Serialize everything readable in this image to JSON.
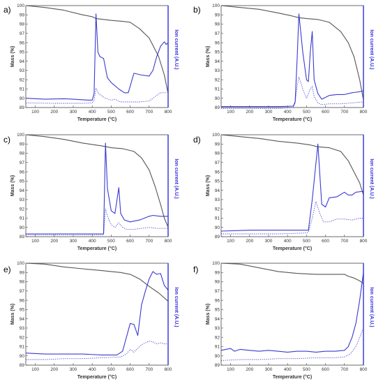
{
  "colors": {
    "mass": "#555555",
    "ion_solid": "#3a3ad0",
    "ion_dotted": "#3a3ad0",
    "ion_axis": "#2f2fd8"
  },
  "chart_data": [
    {
      "type": "line",
      "panel": "a)",
      "xlabel": "Temperature (°C)",
      "ylabel": "Mass (%)",
      "y2label": "Ion current (A.U.)",
      "xlim": [
        50,
        800
      ],
      "ylim": [
        89,
        100
      ],
      "xticks": [
        100,
        200,
        300,
        400,
        500,
        600,
        700,
        800
      ],
      "yticks": [
        89,
        90,
        91,
        92,
        93,
        94,
        95,
        96,
        97,
        98,
        99,
        100
      ],
      "series": [
        {
          "role": "mass",
          "x": [
            50,
            150,
            250,
            350,
            400,
            420,
            500,
            560,
            600,
            650,
            700,
            750,
            780,
            800
          ],
          "values": [
            100,
            99.8,
            99.5,
            99.0,
            98.8,
            98.6,
            98.4,
            98.3,
            98.2,
            97.5,
            96.5,
            94.5,
            92.5,
            90.5
          ]
        },
        {
          "role": "ion_solid",
          "x": [
            50,
            150,
            250,
            300,
            380,
            400,
            410,
            420,
            430,
            440,
            460,
            480,
            500,
            540,
            570,
            590,
            620,
            660,
            700,
            720,
            740,
            760,
            780,
            790,
            800
          ],
          "values": [
            90.0,
            89.9,
            89.95,
            89.9,
            89.8,
            89.8,
            90.5,
            99.1,
            95.0,
            94.5,
            94.3,
            92.2,
            91.7,
            91.0,
            90.6,
            90.6,
            92.7,
            92.5,
            92.4,
            93.0,
            94.5,
            95.6,
            96.1,
            95.8,
            96.0
          ]
        },
        {
          "role": "ion_dotted",
          "x": [
            50,
            200,
            350,
            400,
            410,
            420,
            430,
            440,
            470,
            500,
            520,
            550,
            600,
            650,
            700,
            720,
            740,
            760,
            800
          ],
          "values": [
            89.5,
            89.45,
            89.45,
            89.5,
            89.8,
            91.1,
            90.6,
            90.4,
            90.0,
            89.8,
            89.9,
            89.6,
            89.6,
            89.6,
            89.7,
            90.0,
            90.3,
            90.6,
            90.6
          ]
        }
      ]
    },
    {
      "type": "line",
      "panel": "b)",
      "xlabel": "Temperature (°C)",
      "ylabel": "Mass (%)",
      "y2label": "Ion current (A.U.)",
      "xlim": [
        50,
        800
      ],
      "ylim": [
        89,
        100
      ],
      "xticks": [
        100,
        200,
        300,
        400,
        500,
        600,
        700,
        800
      ],
      "yticks": [
        89,
        90,
        91,
        92,
        93,
        94,
        95,
        96,
        97,
        98,
        99,
        100
      ],
      "series": [
        {
          "role": "mass",
          "x": [
            50,
            150,
            250,
            350,
            420,
            460,
            500,
            560,
            620,
            680,
            720,
            750,
            780,
            800
          ],
          "values": [
            100,
            99.8,
            99.6,
            99.2,
            98.9,
            98.7,
            98.6,
            98.5,
            98.2,
            97.2,
            96.0,
            94.5,
            92.0,
            89.8
          ]
        },
        {
          "role": "ion_solid",
          "x": [
            50,
            200,
            350,
            430,
            440,
            450,
            460,
            480,
            500,
            510,
            520,
            530,
            540,
            560,
            580,
            620,
            660,
            700,
            740,
            780,
            800
          ],
          "values": [
            89.1,
            89.1,
            89.1,
            89.15,
            89.6,
            94.0,
            99.1,
            95.0,
            92.0,
            91.8,
            95.0,
            97.2,
            92.0,
            90.5,
            89.9,
            90.3,
            90.4,
            90.4,
            90.6,
            90.7,
            90.8
          ]
        },
        {
          "role": "ion_dotted",
          "x": [
            50,
            200,
            350,
            430,
            440,
            450,
            460,
            480,
            500,
            520,
            530,
            540,
            560,
            580,
            620,
            680,
            740,
            800
          ],
          "values": [
            88.9,
            88.9,
            88.9,
            89.0,
            89.5,
            91.2,
            92.3,
            91.0,
            90.0,
            91.0,
            91.3,
            90.2,
            89.5,
            89.3,
            89.4,
            89.4,
            89.5,
            89.6
          ]
        }
      ]
    },
    {
      "type": "line",
      "panel": "c)",
      "xlabel": "Temperature (°C)",
      "ylabel": "Mass (%)",
      "y2label": "Ion current (A.U.)",
      "xlim": [
        50,
        800
      ],
      "ylim": [
        89,
        100
      ],
      "xticks": [
        100,
        200,
        300,
        400,
        500,
        600,
        700,
        800
      ],
      "yticks": [
        89,
        90,
        91,
        92,
        93,
        94,
        95,
        96,
        97,
        98,
        99,
        100
      ],
      "series": [
        {
          "role": "mass",
          "x": [
            50,
            150,
            250,
            350,
            450,
            500,
            560,
            620,
            660,
            700,
            730,
            760,
            780,
            800
          ],
          "values": [
            100,
            99.8,
            99.5,
            99.1,
            98.8,
            98.6,
            98.5,
            98.2,
            97.5,
            96.2,
            94.5,
            92.5,
            91.0,
            90.0
          ]
        },
        {
          "role": "ion_solid",
          "x": [
            50,
            200,
            350,
            440,
            460,
            470,
            480,
            500,
            520,
            540,
            550,
            570,
            600,
            650,
            700,
            720,
            760,
            800
          ],
          "values": [
            89.3,
            89.3,
            89.3,
            89.3,
            89.3,
            99.1,
            94.2,
            91.8,
            91.5,
            94.3,
            91.5,
            90.8,
            90.6,
            90.8,
            91.2,
            91.3,
            91.2,
            91.2
          ]
        },
        {
          "role": "ion_dotted",
          "x": [
            50,
            200,
            350,
            440,
            460,
            470,
            480,
            500,
            520,
            540,
            560,
            580,
            620,
            660,
            700,
            740,
            800
          ],
          "values": [
            89.2,
            89.2,
            89.2,
            89.2,
            89.2,
            92.0,
            91.2,
            90.3,
            90.0,
            90.5,
            90.0,
            89.8,
            89.8,
            89.9,
            90.0,
            89.9,
            89.9
          ]
        }
      ]
    },
    {
      "type": "line",
      "panel": "d)",
      "xlabel": "Temperature (°C)",
      "ylabel": "Mass (%)",
      "y2label": "Ion current (A.U.)",
      "xlim": [
        50,
        800
      ],
      "ylim": [
        89,
        100
      ],
      "xticks": [
        100,
        200,
        300,
        400,
        500,
        600,
        700,
        800
      ],
      "yticks": [
        89,
        90,
        91,
        92,
        93,
        94,
        95,
        96,
        97,
        98,
        99,
        100
      ],
      "series": [
        {
          "role": "mass",
          "x": [
            50,
            150,
            250,
            350,
            450,
            520,
            560,
            620,
            680,
            720,
            750,
            780,
            800
          ],
          "values": [
            100,
            99.8,
            99.6,
            99.3,
            99.1,
            98.9,
            98.7,
            98.6,
            98.2,
            97.2,
            96.0,
            94.8,
            93.5
          ]
        },
        {
          "role": "ion_solid",
          "x": [
            50,
            200,
            350,
            500,
            510,
            530,
            550,
            560,
            580,
            600,
            620,
            660,
            700,
            720,
            740,
            760,
            800
          ],
          "values": [
            89.6,
            89.7,
            89.7,
            89.7,
            89.7,
            93.0,
            97.0,
            99.0,
            92.5,
            92.2,
            93.2,
            93.3,
            93.8,
            93.5,
            93.5,
            93.8,
            93.9
          ]
        },
        {
          "role": "ion_dotted",
          "x": [
            50,
            200,
            350,
            500,
            510,
            530,
            550,
            570,
            590,
            620,
            660,
            700,
            740,
            780,
            800
          ],
          "values": [
            89.3,
            89.3,
            89.3,
            89.4,
            89.5,
            91.0,
            92.8,
            91.5,
            90.6,
            90.6,
            90.9,
            90.9,
            90.8,
            91.0,
            91.0
          ]
        }
      ]
    },
    {
      "type": "line",
      "panel": "e)",
      "xlabel": "Temperature (°C)",
      "ylabel": "Mass (%)",
      "y2label": "Ion current (A.U.)",
      "xlim": [
        50,
        800
      ],
      "ylim": [
        89,
        100
      ],
      "xticks": [
        100,
        200,
        300,
        400,
        500,
        600,
        700,
        800
      ],
      "yticks": [
        89,
        90,
        91,
        92,
        93,
        94,
        95,
        96,
        97,
        98,
        99,
        100
      ],
      "series": [
        {
          "role": "mass",
          "x": [
            50,
            150,
            250,
            350,
            450,
            550,
            600,
            650,
            700,
            750,
            800
          ],
          "values": [
            100,
            99.9,
            99.6,
            99.4,
            99.2,
            99.0,
            98.8,
            98.3,
            97.5,
            96.8,
            95.9
          ]
        },
        {
          "role": "ion_solid",
          "x": [
            50,
            150,
            250,
            350,
            450,
            530,
            560,
            580,
            600,
            620,
            640,
            660,
            680,
            700,
            720,
            740,
            760,
            780,
            800
          ],
          "values": [
            90.3,
            90.2,
            90.2,
            90.2,
            90.1,
            90.1,
            90.5,
            92.0,
            93.5,
            93.4,
            92.2,
            95.5,
            97.0,
            98.3,
            99.1,
            98.8,
            98.9,
            97.6,
            97.1
          ]
        },
        {
          "role": "ion_dotted",
          "x": [
            50,
            150,
            250,
            350,
            450,
            550,
            580,
            600,
            620,
            640,
            660,
            680,
            700,
            720,
            740,
            760,
            780,
            800
          ],
          "values": [
            89.6,
            89.6,
            89.7,
            89.7,
            89.8,
            89.9,
            90.2,
            90.7,
            90.4,
            90.8,
            91.2,
            91.4,
            91.6,
            91.5,
            91.3,
            91.4,
            91.3,
            91.3
          ]
        }
      ]
    },
    {
      "type": "line",
      "panel": "f)",
      "xlabel": "Temperature (°C)",
      "ylabel": "Mass (%)",
      "y2label": "Ion current (A.U.)",
      "xlim": [
        50,
        800
      ],
      "ylim": [
        89,
        100
      ],
      "xticks": [
        100,
        200,
        300,
        400,
        500,
        600,
        700,
        800
      ],
      "yticks": [
        89,
        90,
        91,
        92,
        93,
        94,
        95,
        96,
        97,
        98,
        99,
        100
      ],
      "series": [
        {
          "role": "mass",
          "x": [
            50,
            150,
            250,
            350,
            450,
            550,
            650,
            700,
            720,
            750,
            780,
            800
          ],
          "values": [
            100,
            99.9,
            99.5,
            99.1,
            98.9,
            98.8,
            98.8,
            98.8,
            98.6,
            98.4,
            98.1,
            97.8
          ]
        },
        {
          "role": "ion_solid",
          "x": [
            50,
            100,
            120,
            150,
            200,
            250,
            300,
            350,
            400,
            450,
            500,
            550,
            600,
            650,
            700,
            720,
            740,
            760,
            780,
            800
          ],
          "values": [
            90.6,
            90.8,
            90.5,
            90.7,
            90.6,
            90.5,
            90.6,
            90.5,
            90.4,
            90.5,
            90.5,
            90.4,
            90.5,
            90.5,
            90.6,
            91.0,
            92.0,
            93.5,
            96.0,
            99.0
          ]
        },
        {
          "role": "ion_dotted",
          "x": [
            50,
            150,
            250,
            350,
            450,
            550,
            650,
            700,
            730,
            760,
            780,
            800
          ],
          "values": [
            89.5,
            89.6,
            89.6,
            89.7,
            89.7,
            89.8,
            89.8,
            89.9,
            90.2,
            91.0,
            92.0,
            93.0
          ]
        }
      ]
    }
  ]
}
